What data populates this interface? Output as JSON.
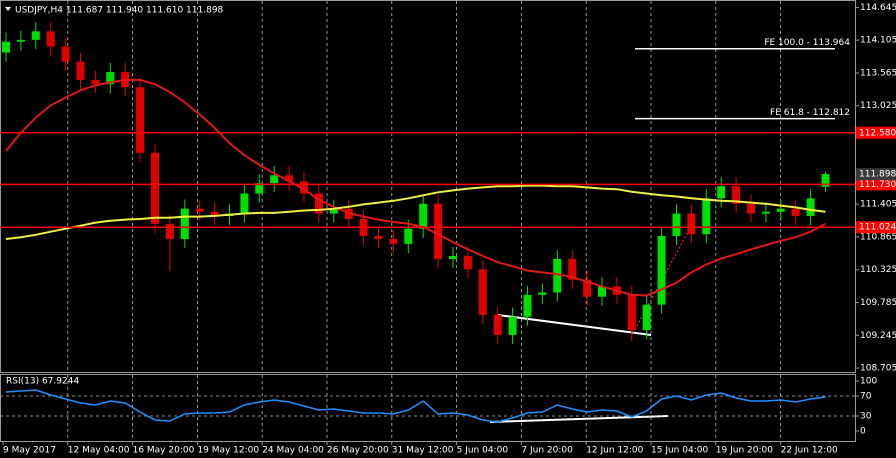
{
  "chart_data": [
    {
      "type": "candlestick",
      "title": "USDJPY,H4  111.687 111.940 111.610 111.898",
      "open": [
        113.9,
        114.08,
        114.11,
        114.25,
        114.0,
        113.75,
        113.45,
        113.38,
        113.58,
        113.33,
        112.25,
        111.08,
        110.83,
        111.33,
        111.28,
        111.21,
        111.25,
        111.58,
        111.75,
        111.88,
        111.78,
        111.58,
        111.25,
        111.33,
        111.16,
        110.88,
        110.83,
        110.75,
        111.0,
        111.41,
        110.5,
        110.55,
        110.33,
        109.58,
        109.25,
        109.55,
        109.91,
        109.95,
        110.5,
        110.16,
        109.88,
        110.05,
        109.91,
        109.33,
        109.75,
        110.88,
        111.25,
        110.91,
        111.5,
        111.7,
        111.41,
        111.25,
        111.28,
        111.33,
        111.21,
        111.69
      ],
      "high": [
        114.23,
        114.26,
        114.4,
        114.4,
        114.15,
        113.9,
        113.6,
        113.73,
        113.73,
        113.48,
        112.4,
        111.23,
        111.48,
        111.48,
        111.43,
        111.4,
        111.73,
        111.9,
        112.03,
        112.03,
        111.93,
        111.73,
        111.48,
        111.48,
        111.31,
        111.03,
        110.98,
        111.15,
        111.56,
        111.56,
        110.7,
        110.7,
        110.48,
        109.73,
        109.7,
        110.06,
        110.1,
        110.65,
        110.65,
        110.31,
        110.2,
        110.2,
        110.06,
        109.9,
        111.03,
        111.4,
        111.4,
        111.65,
        111.85,
        111.85,
        111.56,
        111.43,
        111.48,
        111.48,
        111.65,
        111.94
      ],
      "low": [
        113.75,
        113.93,
        113.96,
        113.85,
        113.6,
        113.3,
        113.23,
        113.23,
        113.18,
        112.1,
        110.93,
        110.3,
        110.68,
        111.13,
        111.06,
        111.06,
        111.1,
        111.43,
        111.6,
        111.63,
        111.43,
        111.1,
        111.1,
        111.01,
        110.73,
        110.68,
        110.6,
        110.6,
        110.85,
        110.35,
        110.35,
        110.18,
        109.43,
        109.1,
        109.1,
        109.4,
        109.76,
        109.8,
        110.01,
        109.73,
        109.73,
        109.76,
        109.15,
        109.18,
        109.6,
        110.73,
        110.76,
        110.76,
        111.35,
        111.26,
        111.1,
        111.1,
        111.13,
        111.06,
        111.06,
        111.61
      ],
      "close": [
        114.08,
        114.11,
        114.25,
        114.0,
        113.75,
        113.45,
        113.38,
        113.58,
        113.33,
        112.25,
        111.08,
        110.83,
        111.33,
        111.28,
        111.21,
        111.25,
        111.58,
        111.75,
        111.88,
        111.78,
        111.58,
        111.25,
        111.33,
        111.16,
        110.88,
        110.83,
        110.75,
        111.0,
        111.41,
        110.5,
        110.55,
        110.33,
        109.58,
        109.25,
        109.55,
        109.91,
        109.95,
        110.5,
        110.16,
        109.88,
        110.05,
        109.91,
        109.33,
        109.75,
        110.88,
        111.25,
        110.91,
        111.5,
        111.7,
        111.41,
        111.25,
        111.28,
        111.33,
        111.21,
        111.5,
        111.9
      ],
      "up_color": "#00e000",
      "down_color": "#e00000",
      "overlays": [
        {
          "color": "#e01818",
          "values": [
            112.28,
            112.58,
            112.83,
            113.03,
            113.16,
            113.28,
            113.36,
            113.41,
            113.45,
            113.45,
            113.38,
            113.25,
            113.08,
            112.88,
            112.66,
            112.41,
            112.21,
            112.05,
            111.91,
            111.78,
            111.65,
            111.48,
            111.36,
            111.26,
            111.2,
            111.15,
            111.11,
            111.08,
            111.03,
            110.91,
            110.78,
            110.66,
            110.55,
            110.45,
            110.38,
            110.31,
            110.28,
            110.25,
            110.2,
            110.13,
            110.05,
            109.98,
            109.91,
            109.9,
            110.0,
            110.11,
            110.28,
            110.41,
            110.51,
            110.58,
            110.66,
            110.73,
            110.8,
            110.86,
            110.95,
            111.08
          ]
        },
        {
          "color": "#f0f040",
          "values": [
            110.83,
            110.86,
            110.9,
            110.95,
            111.0,
            111.05,
            111.1,
            111.13,
            111.15,
            111.16,
            111.18,
            111.18,
            111.2,
            111.2,
            111.21,
            111.23,
            111.25,
            111.26,
            111.26,
            111.28,
            111.3,
            111.31,
            111.33,
            111.36,
            111.4,
            111.43,
            111.46,
            111.5,
            111.55,
            111.6,
            111.63,
            111.66,
            111.68,
            111.7,
            111.7,
            111.71,
            111.71,
            111.7,
            111.7,
            111.68,
            111.66,
            111.65,
            111.61,
            111.58,
            111.55,
            111.53,
            111.5,
            111.48,
            111.46,
            111.45,
            111.43,
            111.41,
            111.38,
            111.35,
            111.31,
            111.28
          ]
        }
      ],
      "ylim": [
        108.64,
        114.75
      ],
      "yticks": [
        114.645,
        114.105,
        113.565,
        113.025,
        111.405,
        110.865,
        110.325,
        109.785,
        109.245,
        108.705
      ],
      "levels": [
        {
          "value": 112.58,
          "label": "112.580"
        },
        {
          "value": 111.73,
          "label": "111.730"
        },
        111.024
      ],
      "level_color": "#ff0000",
      "last_price": 111.898,
      "annotations": [
        {
          "value": 113.964,
          "label": "FE 100.0 - 113.964"
        },
        {
          "value": 112.812,
          "label": "FE 61.8 - 112.812"
        }
      ],
      "x_labels": [
        "9 May 2017",
        "12 May 04:00",
        "16 May 20:00",
        "19 May 12:00",
        "24 May 04:00",
        "26 May 20:00",
        "31 May 12:00",
        "5 Jun 04:00",
        "7 Jun 20:00",
        "12 Jun 12:00",
        "15 Jun 04:00",
        "19 Jun 20:00",
        "22 Jun 12:00"
      ],
      "grid": true
    },
    {
      "type": "line",
      "title": "RSI(13) 67.9244",
      "values": [
        78,
        80,
        82,
        72,
        64,
        56,
        52,
        60,
        56,
        38,
        22,
        20,
        34,
        36,
        36,
        38,
        52,
        58,
        62,
        58,
        50,
        42,
        44,
        40,
        36,
        36,
        34,
        42,
        60,
        34,
        36,
        32,
        22,
        18,
        26,
        36,
        38,
        52,
        44,
        38,
        42,
        40,
        28,
        40,
        64,
        70,
        62,
        72,
        76,
        66,
        60,
        60,
        62,
        58,
        64,
        67.92
      ],
      "color": "#1e90ff",
      "ylim": [
        -20,
        112
      ],
      "yticks": [
        100,
        70,
        30,
        0
      ],
      "levels": [
        70,
        30
      ]
    }
  ]
}
